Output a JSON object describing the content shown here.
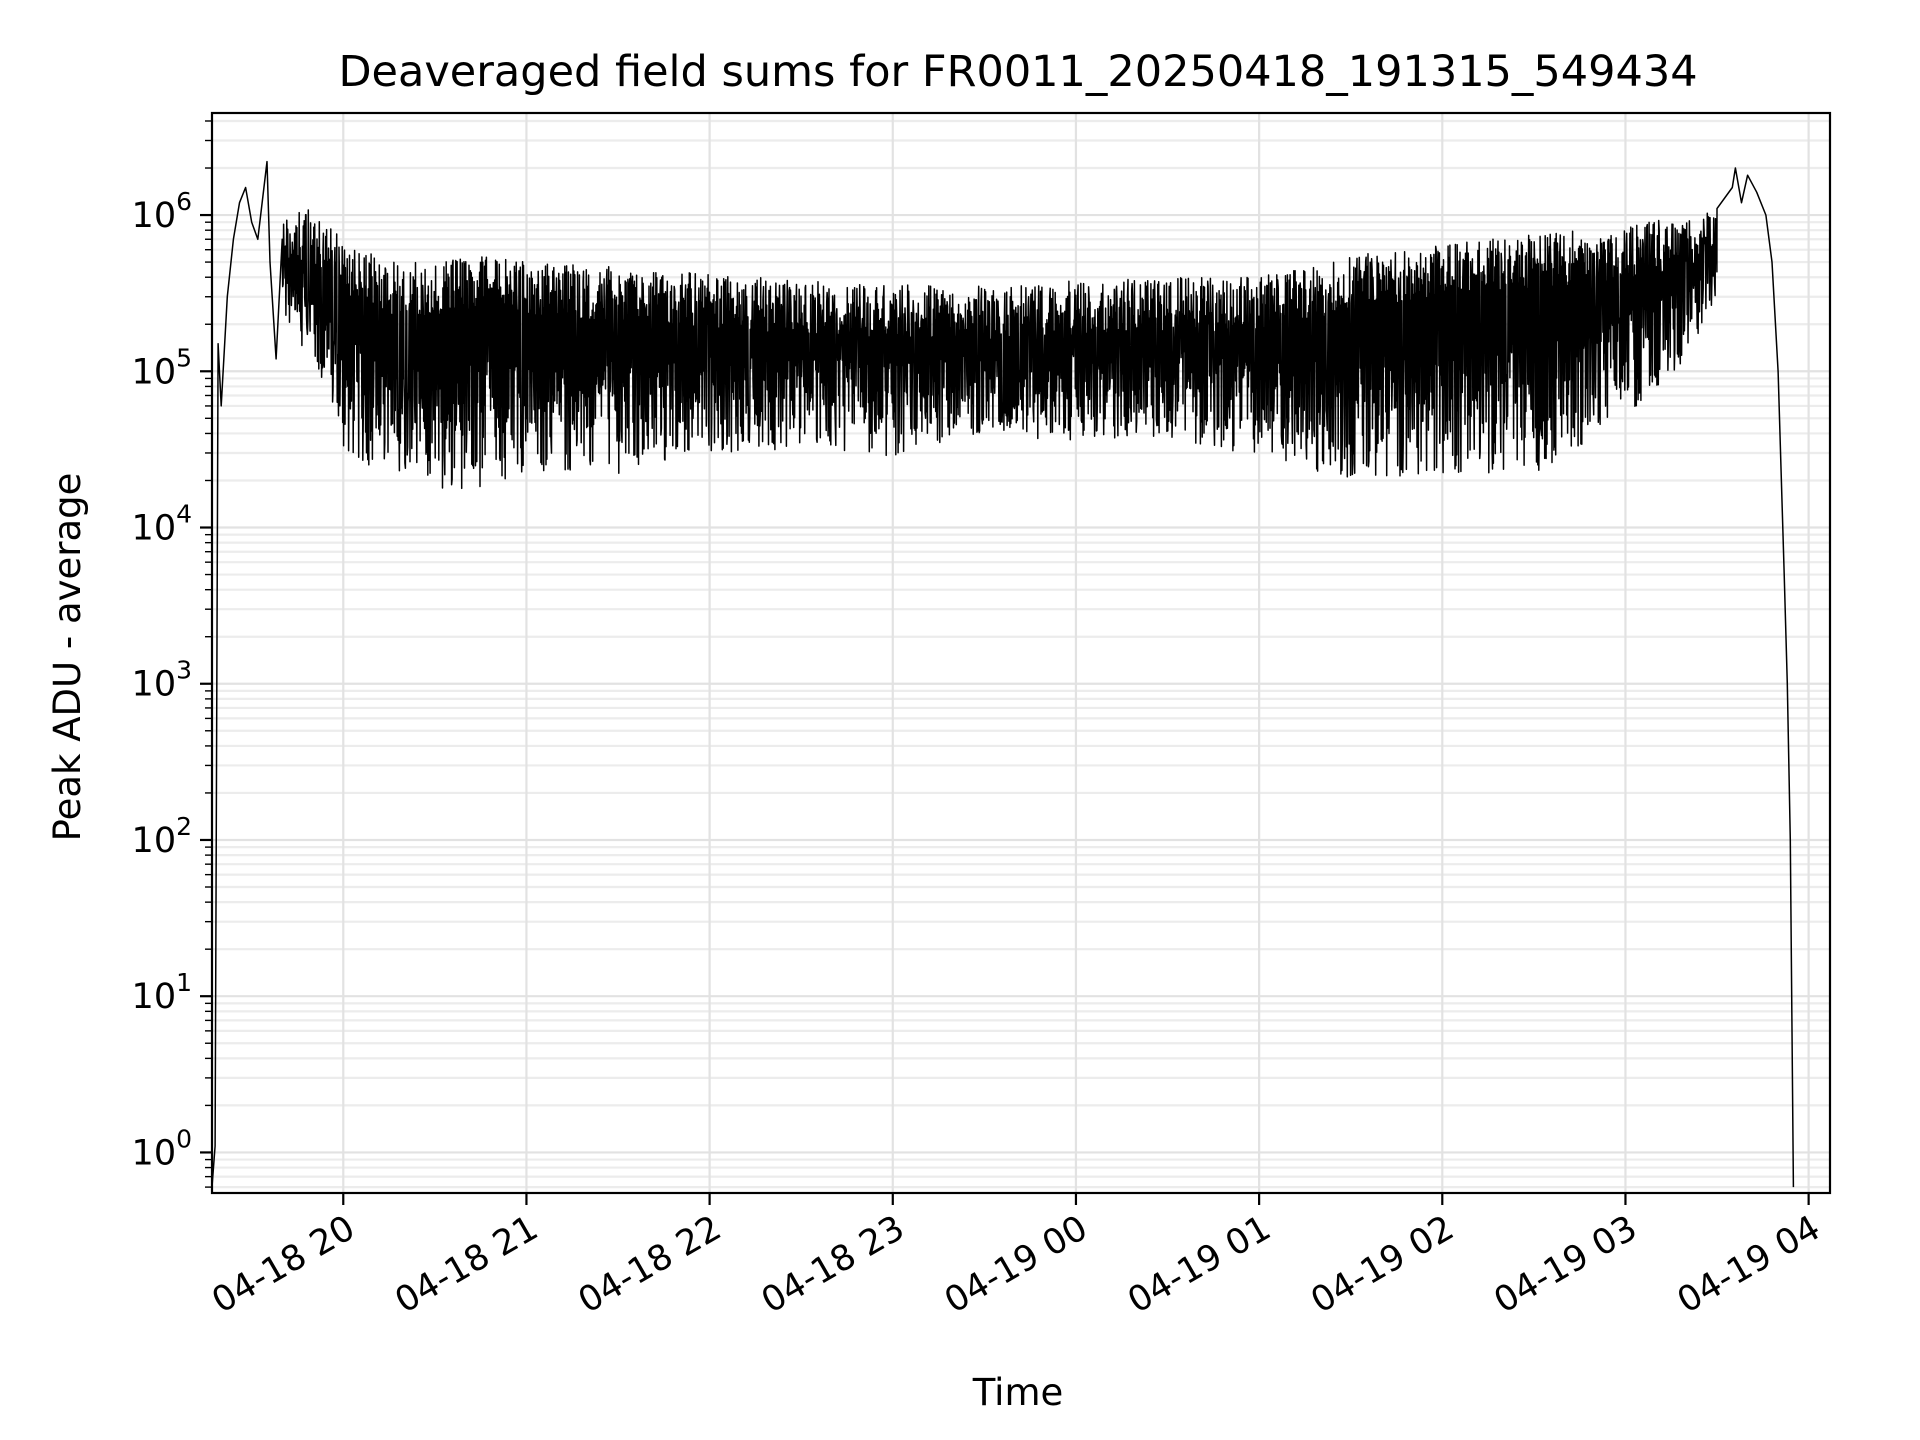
{
  "chart_data": {
    "type": "line",
    "title": "Deaveraged field sums for FR0011_20250418_191315_549434",
    "xlabel": "Time",
    "ylabel": "Peak ADU - average",
    "x_scale": "time",
    "y_scale": "log",
    "xlim": [
      "2025-04-18 19:17",
      "2025-04-19 04:07"
    ],
    "ylim": [
      0.55,
      4500000
    ],
    "grid": true,
    "legend": "none",
    "line_color": "#000000",
    "x_ticks": [
      {
        "time": "2025-04-18 20:00",
        "label": "04-18 20"
      },
      {
        "time": "2025-04-18 21:00",
        "label": "04-18 21"
      },
      {
        "time": "2025-04-18 22:00",
        "label": "04-18 22"
      },
      {
        "time": "2025-04-18 23:00",
        "label": "04-18 23"
      },
      {
        "time": "2025-04-19 00:00",
        "label": "04-19 00"
      },
      {
        "time": "2025-04-19 01:00",
        "label": "04-19 01"
      },
      {
        "time": "2025-04-19 02:00",
        "label": "04-19 02"
      },
      {
        "time": "2025-04-19 03:00",
        "label": "04-19 03"
      },
      {
        "time": "2025-04-19 04:00",
        "label": "04-19 04"
      }
    ],
    "y_ticks": [
      {
        "value": 1,
        "base": "10",
        "exp": "0"
      },
      {
        "value": 10,
        "base": "10",
        "exp": "1"
      },
      {
        "value": 100,
        "base": "10",
        "exp": "2"
      },
      {
        "value": 1000,
        "base": "10",
        "exp": "3"
      },
      {
        "value": 10000,
        "base": "10",
        "exp": "4"
      },
      {
        "value": 100000,
        "base": "10",
        "exp": "5"
      },
      {
        "value": 1000000,
        "base": "10",
        "exp": "6"
      }
    ],
    "series": [
      {
        "style": "oscillating — dense alternation between upper and lower envelopes",
        "start_points": [
          {
            "time": "2025-04-18 19:17:00",
            "value": 0.6
          },
          {
            "time": "2025-04-18 19:18:00",
            "value": 1.1
          },
          {
            "time": "2025-04-18 19:19:00",
            "value": 150000
          },
          {
            "time": "2025-04-18 19:20:00",
            "value": 60000
          },
          {
            "time": "2025-04-18 19:22:00",
            "value": 300000
          },
          {
            "time": "2025-04-18 19:24:00",
            "value": 700000
          },
          {
            "time": "2025-04-18 19:26:00",
            "value": 1200000
          },
          {
            "time": "2025-04-18 19:28:00",
            "value": 1500000
          },
          {
            "time": "2025-04-18 19:30:00",
            "value": 900000
          },
          {
            "time": "2025-04-18 19:32:00",
            "value": 700000
          },
          {
            "time": "2025-04-18 19:35:00",
            "value": 2200000
          },
          {
            "time": "2025-04-18 19:36:00",
            "value": 500000
          },
          {
            "time": "2025-04-18 19:38:00",
            "value": 120000
          },
          {
            "time": "2025-04-18 19:40:00",
            "value": 700000
          }
        ],
        "upper_envelope": [
          {
            "time": "2025-04-18 19:40",
            "value": 1000000
          },
          {
            "time": "2025-04-18 19:50",
            "value": 1100000
          },
          {
            "time": "2025-04-18 20:00",
            "value": 700000
          },
          {
            "time": "2025-04-18 20:15",
            "value": 500000
          },
          {
            "time": "2025-04-18 20:30",
            "value": 500000
          },
          {
            "time": "2025-04-18 20:45",
            "value": 550000
          },
          {
            "time": "2025-04-18 21:00",
            "value": 500000
          },
          {
            "time": "2025-04-18 21:30",
            "value": 470000
          },
          {
            "time": "2025-04-18 22:00",
            "value": 420000
          },
          {
            "time": "2025-04-18 22:30",
            "value": 380000
          },
          {
            "time": "2025-04-18 23:00",
            "value": 360000
          },
          {
            "time": "2025-04-18 23:30",
            "value": 350000
          },
          {
            "time": "2025-04-19 00:00",
            "value": 380000
          },
          {
            "time": "2025-04-19 00:30",
            "value": 400000
          },
          {
            "time": "2025-04-19 01:00",
            "value": 400000
          },
          {
            "time": "2025-04-19 01:30",
            "value": 550000
          },
          {
            "time": "2025-04-19 02:00",
            "value": 650000
          },
          {
            "time": "2025-04-19 02:30",
            "value": 750000
          },
          {
            "time": "2025-04-19 03:00",
            "value": 850000
          },
          {
            "time": "2025-04-19 03:20",
            "value": 1000000
          },
          {
            "time": "2025-04-19 03:30",
            "value": 1100000
          }
        ],
        "lower_envelope": [
          {
            "time": "2025-04-18 19:40",
            "value": 200000
          },
          {
            "time": "2025-04-18 19:50",
            "value": 120000
          },
          {
            "time": "2025-04-18 20:00",
            "value": 30000
          },
          {
            "time": "2025-04-18 20:15",
            "value": 21000
          },
          {
            "time": "2025-04-18 20:30",
            "value": 18000
          },
          {
            "time": "2025-04-18 20:45",
            "value": 17000
          },
          {
            "time": "2025-04-18 21:00",
            "value": 22000
          },
          {
            "time": "2025-04-18 21:30",
            "value": 22000
          },
          {
            "time": "2025-04-18 22:00",
            "value": 30000
          },
          {
            "time": "2025-04-18 22:30",
            "value": 32000
          },
          {
            "time": "2025-04-18 23:00",
            "value": 28000
          },
          {
            "time": "2025-04-18 23:30",
            "value": 40000
          },
          {
            "time": "2025-04-19 00:00",
            "value": 35000
          },
          {
            "time": "2025-04-19 00:30",
            "value": 38000
          },
          {
            "time": "2025-04-19 01:00",
            "value": 28000
          },
          {
            "time": "2025-04-19 01:30",
            "value": 20000
          },
          {
            "time": "2025-04-19 02:00",
            "value": 22000
          },
          {
            "time": "2025-04-19 02:30",
            "value": 22000
          },
          {
            "time": "2025-04-19 03:00",
            "value": 50000
          },
          {
            "time": "2025-04-19 03:20",
            "value": 120000
          },
          {
            "time": "2025-04-19 03:30",
            "value": 300000
          }
        ],
        "end_points": [
          {
            "time": "2025-04-19 03:30:00",
            "value": 1100000
          },
          {
            "time": "2025-04-19 03:35:00",
            "value": 1500000
          },
          {
            "time": "2025-04-19 03:36:00",
            "value": 2000000
          },
          {
            "time": "2025-04-19 03:38:00",
            "value": 1200000
          },
          {
            "time": "2025-04-19 03:40:00",
            "value": 1800000
          },
          {
            "time": "2025-04-19 03:43:00",
            "value": 1400000
          },
          {
            "time": "2025-04-19 03:46:00",
            "value": 1000000
          },
          {
            "time": "2025-04-19 03:48:00",
            "value": 500000
          },
          {
            "time": "2025-04-19 03:50:00",
            "value": 100000
          },
          {
            "time": "2025-04-19 03:52:00",
            "value": 5000
          },
          {
            "time": "2025-04-19 03:53:00",
            "value": 1000
          },
          {
            "time": "2025-04-19 03:54:00",
            "value": 100
          },
          {
            "time": "2025-04-19 03:55:00",
            "value": 0.6
          }
        ]
      }
    ]
  }
}
